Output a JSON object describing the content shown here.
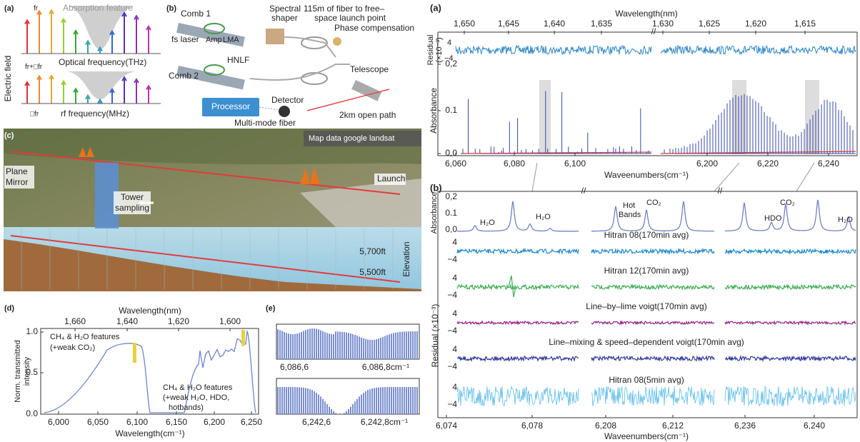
{
  "panel_a": {
    "label": "(a)",
    "fr": "fr",
    "absorption": "Absorption feature",
    "ylabel": "Electric field",
    "optical": "Optical frequency(THz)",
    "fr_plus": "fr+□fr",
    "dfr": "□fr",
    "rf": "rf frequency(MHz)"
  },
  "panel_b": {
    "label": "(b)",
    "comb1": "Comb 1",
    "shaper": [
      "Spectral",
      "shaper"
    ],
    "fiber": [
      "115m of fiber to free–",
      "space launch point"
    ],
    "fs_laser": "fs laser",
    "amp": "Amp",
    "lma": "LMA",
    "hnlf": "HNLF",
    "phase": "Phase compensation",
    "comb2": "Comb 2",
    "telescope": "Telescope",
    "processor": "Processor",
    "detector": "Detector",
    "open_path": "2km open path",
    "mmf": "Multi-mode fiber"
  },
  "panel_c": {
    "label": "(c)",
    "credit": "Map data google landsat",
    "mirror": [
      "Plane",
      "Mirror"
    ],
    "launch": "Launch",
    "tower": [
      "Tower",
      "sampling"
    ],
    "elev_high": "5,700ft",
    "elev_low": "5,500ft",
    "elevation": "Elevation"
  },
  "panel_d": {
    "label": "(d)",
    "top_axis_label": "Wavelength(nm)",
    "top_ticks": [
      "1,660",
      "1,640",
      "1,620",
      "1,600"
    ],
    "yticks": [
      "1.0",
      "0.5",
      "0.0"
    ],
    "ylabel": [
      "Norm. transmitted",
      "intensity"
    ],
    "note1": [
      "CH₄ & H₂O features",
      "(+weak CO₂)"
    ],
    "note2": [
      "CH₄ & H₂O features",
      "(+weak H₂O, HDO,",
      "hotbands)"
    ],
    "xticks": [
      "6,000",
      "6,050",
      "6,100",
      "6,150",
      "6,200",
      "6,250"
    ],
    "xlabel": "Wavelength(cm⁻¹)"
  },
  "panel_e": {
    "label": "(e)",
    "top_ticks": [
      "6,086,6",
      "6,086,8cm⁻¹"
    ],
    "bottom_ticks": [
      "6,242,6",
      "6,242,8cm⁻¹"
    ]
  },
  "panel_ra": {
    "label": "(a)",
    "top_axis_label": "Wavelength(nm)",
    "top_ticks": [
      "1,650",
      "1,645",
      "1,640",
      "1,635",
      "1,630",
      "1,625",
      "1,620",
      "1,615"
    ],
    "res_label": [
      "Residual",
      "(×10⁻³)"
    ],
    "res_ticks": [
      "4",
      "−4"
    ],
    "abs_label": "Absorbance",
    "abs_ticks": [
      "0,2",
      "0.1",
      "0,0"
    ],
    "xticks": [
      "6,060",
      "6,080",
      "6,100",
      "6,200",
      "6,220",
      "6,240"
    ],
    "xlabel": "Waveenumbers(cm⁻¹)"
  },
  "panel_rb": {
    "label": "(b)",
    "abs_ticks": [
      "0,2",
      "0.1",
      "0,0"
    ],
    "abs_label": "Absorbance",
    "h2o_1": "H₂O",
    "h2o_2": "H₂O",
    "hot_bands": [
      "Hot",
      "Bands"
    ],
    "co2_1": "CO₂",
    "co2_2": "CO₂",
    "hdo": "HDO",
    "h2o_3": "H₂O",
    "rows": [
      {
        "name": "Hitran 08(170min avg)",
        "ticks": [
          "4",
          "−4"
        ]
      },
      {
        "name": "Hitran 12(170min avg)",
        "ticks": [
          "4",
          "−4"
        ]
      },
      {
        "name": "Line–by–lime voigt(170min avg)",
        "ticks": [
          "4",
          "−4"
        ]
      },
      {
        "name": "Line–mixing & speed–dependent voigt(170min avg)",
        "ticks": [
          "4",
          "−4"
        ]
      },
      {
        "name": "Hitran 08(5min avg)",
        "ticks": [
          "4",
          "−4"
        ]
      }
    ],
    "res_label": "Residual (×10⁻³)",
    "xticks": [
      "6,074",
      "6,078",
      "6,208",
      "6,212",
      "6,236",
      "6,240"
    ],
    "xlabel": "Waveenumbers(cm⁻¹)"
  }
}
